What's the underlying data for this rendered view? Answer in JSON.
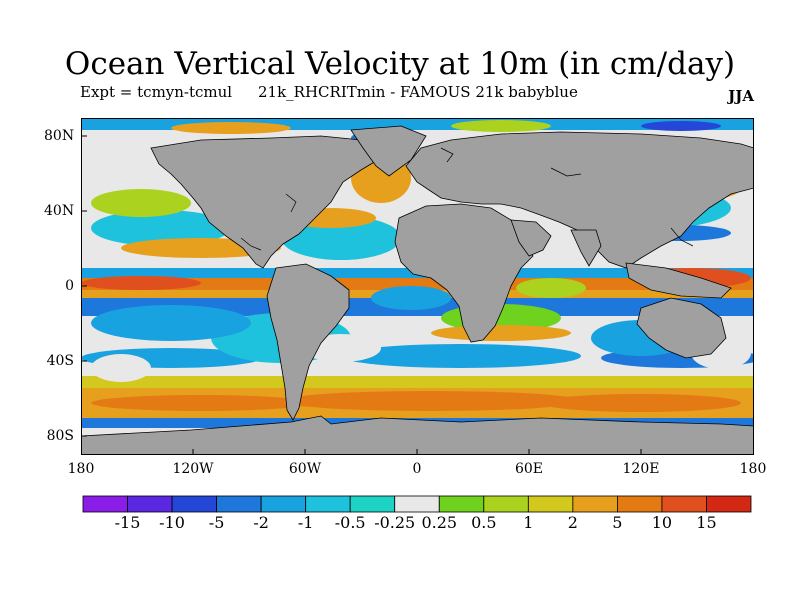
{
  "title": "Ocean Vertical Velocity at 10m (in cm/day)",
  "subtitle_left": "Expt = tcmyn-tcmul",
  "subtitle_mid": "21k_RHCRITmin - FAMOUS 21k babyblue",
  "season": "JJA",
  "lat_labels": [
    "80N",
    "40N",
    "0",
    "40S",
    "80S"
  ],
  "lon_labels": [
    "180",
    "120W",
    "60W",
    "0",
    "60E",
    "120E",
    "180"
  ],
  "colorbar": {
    "labels": [
      "-15",
      "-10",
      "-5",
      "-2",
      "-1",
      "-0.5",
      "-0.25",
      "0.25",
      "0.5",
      "1",
      "2",
      "5",
      "10",
      "15"
    ],
    "colors": [
      "#8a1ee8",
      "#5a28e0",
      "#2447d8",
      "#1e78dc",
      "#19a2e0",
      "#1fc2dc",
      "#1ed2c4",
      "#e8e8e8",
      "#6ed21e",
      "#aad21e",
      "#d2c81e",
      "#e6a01e",
      "#e47a14",
      "#e0501e",
      "#d22814"
    ]
  },
  "colors": {
    "land": "#a0a0a0",
    "missing": "#ffffff",
    "coast": "#000000"
  }
}
